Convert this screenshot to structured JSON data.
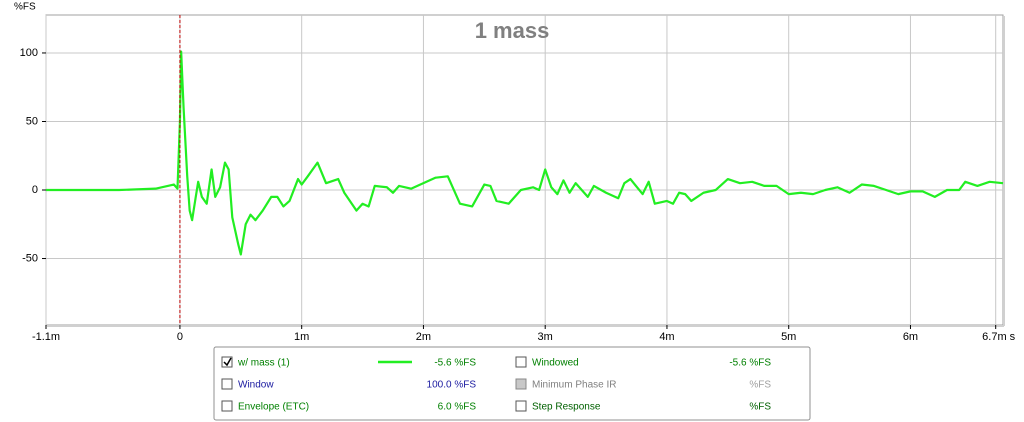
{
  "chart_data": {
    "type": "line",
    "title": "1 mass",
    "y_label": "%FS",
    "x": [
      -1.1,
      -0.5,
      -0.2,
      -0.1,
      -0.05,
      -0.02,
      0,
      0.01,
      0.03,
      0.06,
      0.08,
      0.1,
      0.13,
      0.15,
      0.18,
      0.22,
      0.26,
      0.29,
      0.33,
      0.37,
      0.4,
      0.43,
      0.48,
      0.5,
      0.54,
      0.58,
      0.62,
      0.68,
      0.75,
      0.8,
      0.85,
      0.9,
      0.97,
      1.0,
      1.05,
      1.13,
      1.2,
      1.3,
      1.35,
      1.45,
      1.5,
      1.55,
      1.6,
      1.7,
      1.75,
      1.8,
      1.9,
      2.0,
      2.1,
      2.2,
      2.3,
      2.4,
      2.5,
      2.55,
      2.6,
      2.7,
      2.8,
      2.9,
      2.95,
      3.0,
      3.05,
      3.1,
      3.15,
      3.2,
      3.25,
      3.35,
      3.4,
      3.5,
      3.6,
      3.65,
      3.7,
      3.8,
      3.85,
      3.9,
      4.0,
      4.05,
      4.1,
      4.15,
      4.2,
      4.3,
      4.4,
      4.45,
      4.5,
      4.6,
      4.7,
      4.8,
      4.9,
      5.0,
      5.1,
      5.2,
      5.3,
      5.4,
      5.5,
      5.6,
      5.7,
      5.8,
      5.9,
      6.0,
      6.1,
      6.2,
      6.3,
      6.4,
      6.45,
      6.55,
      6.65,
      6.76
    ],
    "series": [
      {
        "name": "w/ mass (1)",
        "color": "#22ee22",
        "values": [
          0,
          0,
          1,
          3,
          4,
          1,
          50,
          101,
          60,
          10,
          -15,
          -22,
          -5,
          6,
          -5,
          -10,
          15,
          -5,
          2,
          20,
          15,
          -20,
          -40,
          -47,
          -25,
          -18,
          -22,
          -15,
          -5,
          -5,
          -12,
          -8,
          8,
          4,
          10,
          20,
          5,
          8,
          -2,
          -15,
          -10,
          -12,
          3,
          2,
          -2,
          3,
          1,
          5,
          9,
          10,
          -10,
          -12,
          4,
          3,
          -8,
          -10,
          0,
          2,
          0,
          15,
          2,
          -3,
          7,
          -2,
          5,
          -5,
          3,
          -2,
          -6,
          5,
          8,
          -3,
          6,
          -10,
          -8,
          -10,
          -2,
          -3,
          -8,
          -2,
          0,
          4,
          8,
          5,
          6,
          3,
          3,
          -3,
          -2,
          -3,
          0,
          2,
          -2,
          4,
          3,
          0,
          -3,
          -1,
          -1,
          -5,
          0,
          0,
          6,
          3,
          6,
          5
        ]
      }
    ],
    "xlim": [
      -1.1,
      6.76
    ],
    "ylim": [
      -98.5,
      127.7
    ],
    "xticks": [
      {
        "value": -1.1,
        "label": "-1.1m"
      },
      0,
      {
        "value": 1,
        "label": "1m"
      },
      {
        "value": 2,
        "label": "2m"
      },
      {
        "value": 3,
        "label": "3m"
      },
      {
        "value": 4,
        "label": "4m"
      },
      {
        "value": 5,
        "label": "5m"
      },
      {
        "value": 6,
        "label": "6m"
      },
      {
        "value": 6.7,
        "label": "6.7m s"
      }
    ],
    "yticks": [
      -50,
      0,
      50,
      100
    ],
    "grid": true,
    "legend": {
      "rows": [
        {
          "left_label": "w/ mass (1)",
          "left_value": "-5.6 %FS",
          "right_label": "Windowed",
          "right_value": "-5.6 %FS"
        },
        {
          "left_label": "Window",
          "left_value": "100.0 %FS",
          "right_label": "Minimum Phase IR",
          "right_value": "%FS"
        },
        {
          "left_label": "Envelope (ETC)",
          "left_value": "6.0 %FS",
          "right_label": "Step Response",
          "right_value": "%FS"
        }
      ]
    }
  }
}
